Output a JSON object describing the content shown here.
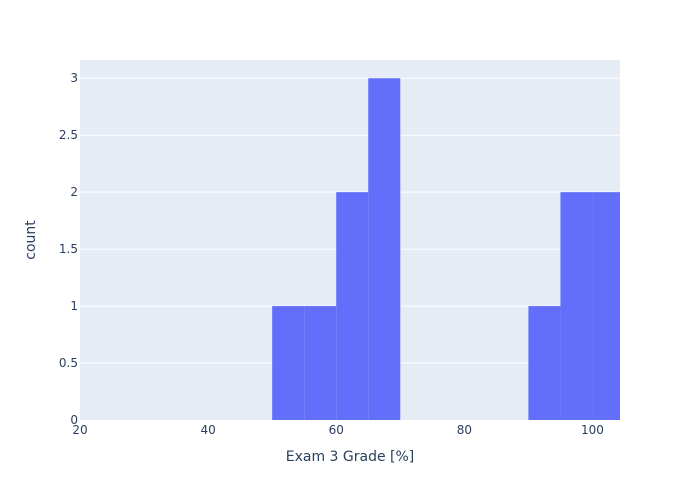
{
  "chart_data": {
    "type": "bar",
    "bins": [
      {
        "start": 50,
        "end": 55,
        "count": 1
      },
      {
        "start": 55,
        "end": 60,
        "count": 1
      },
      {
        "start": 60,
        "end": 65,
        "count": 2
      },
      {
        "start": 65,
        "end": 70,
        "count": 3
      },
      {
        "start": 90,
        "end": 95,
        "count": 1
      },
      {
        "start": 95,
        "end": 100,
        "count": 2
      },
      {
        "start": 100,
        "end": 105,
        "count": 2
      }
    ],
    "xlabel": "Exam 3 Grade [%]",
    "ylabel": "count",
    "xlim": [
      20,
      104.3
    ],
    "ylim": [
      0,
      3.16
    ],
    "x_ticks": [
      20,
      40,
      60,
      80,
      100
    ],
    "x_tick_labels": [
      "20",
      "40",
      "60",
      "80",
      "100"
    ],
    "y_ticks": [
      0,
      0.5,
      1,
      1.5,
      2,
      2.5,
      3
    ],
    "y_tick_labels": [
      "0",
      "0.5",
      "1",
      "1.5",
      "2",
      "2.5",
      "3"
    ],
    "grid": true,
    "colors": {
      "bar": "#636efa",
      "plot_background": "#e5ecf6",
      "grid": "#ffffff",
      "text": "#2a3f5f"
    }
  }
}
